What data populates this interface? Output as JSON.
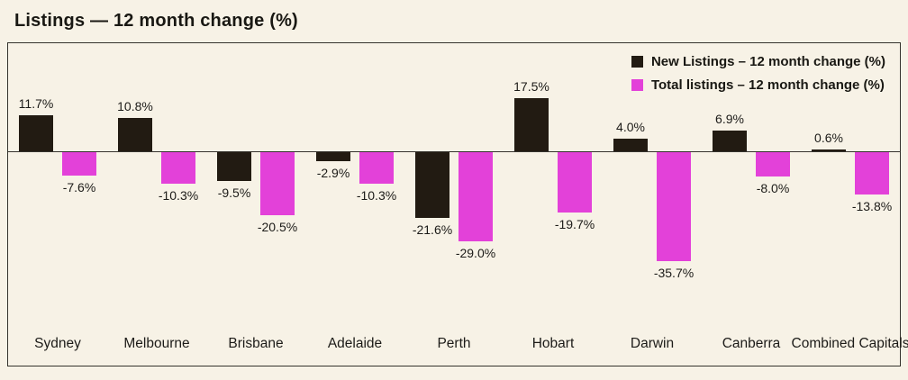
{
  "title": "Listings — 12 month change (%)",
  "colors": {
    "background": "#f7f2e6",
    "new_listings": "#221b12",
    "total_listings": "#e341d9",
    "border": "#35332d",
    "text": "#1c1b18"
  },
  "legend": {
    "items": [
      {
        "label": "New Listings – 12 month change (%)",
        "color": "#221b12"
      },
      {
        "label": "Total listings – 12 month change (%)",
        "color": "#e341d9"
      }
    ]
  },
  "chart_data": {
    "type": "bar",
    "title": "Listings — 12 month change (%)",
    "categories": [
      "Sydney",
      "Melbourne",
      "Brisbane",
      "Adelaide",
      "Perth",
      "Hobart",
      "Darwin",
      "Canberra",
      "Combined Capitals"
    ],
    "series": [
      {
        "name": "New Listings – 12 month change (%)",
        "color": "#221b12",
        "values": [
          11.7,
          10.8,
          -9.5,
          -2.9,
          -21.6,
          17.5,
          4.0,
          6.9,
          0.6
        ]
      },
      {
        "name": "Total listings – 12 month change (%)",
        "color": "#e341d9",
        "values": [
          -7.6,
          -10.3,
          -20.5,
          -10.3,
          -29.0,
          -19.7,
          -35.7,
          -8.0,
          -13.8
        ]
      }
    ],
    "value_label_format": "{v}%",
    "value_label_decimals": 1,
    "ylim": [
      -40,
      22
    ],
    "grid": false,
    "legend_position": "top-right",
    "zero_line": true
  }
}
